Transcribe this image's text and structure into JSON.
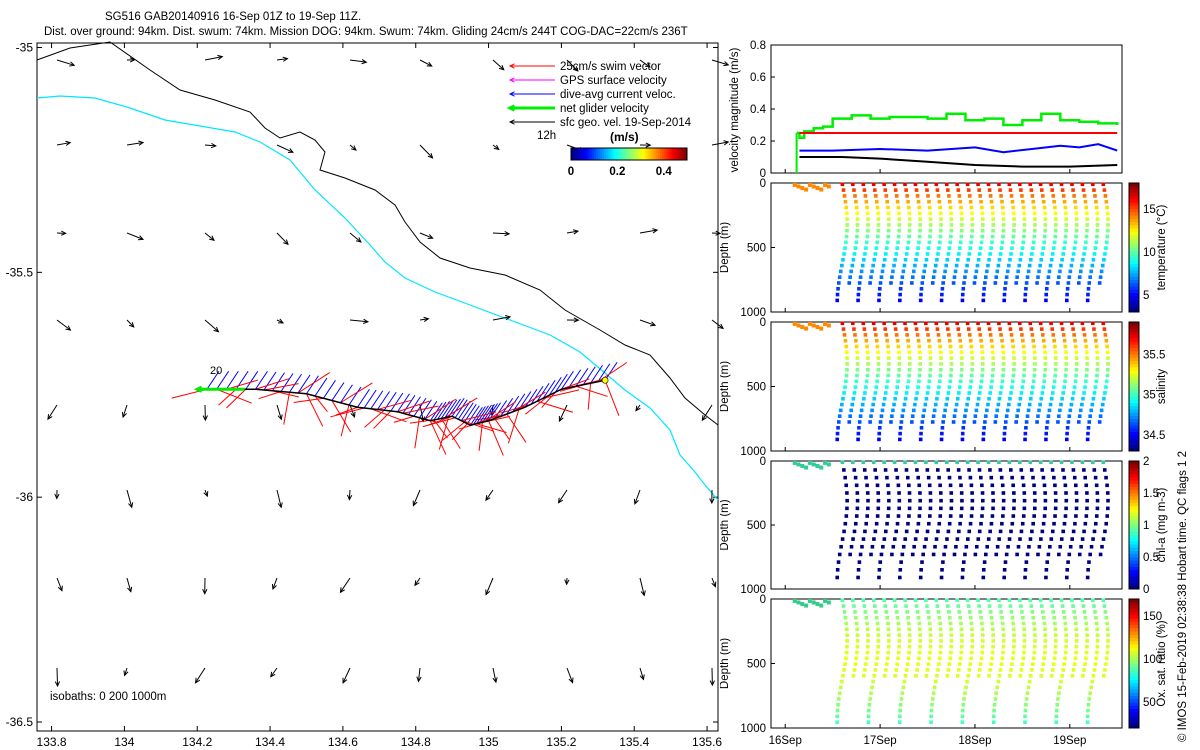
{
  "title_line1": "SG516 GAB20140916 16-Sep 01Z to 19-Sep 11Z.",
  "title_line2": "Dist. over ground: 94km. Dist. swum: 74km. Mission DOG: 94km. Swum: 74km. Gliding 24cm/s 244T COG-DAC=22cm/s 236T",
  "credit": "© IMOS 15-Feb-2019 02:38:38 Hobart time. QC flags 1  2",
  "colors": {
    "swim": "#ff0000",
    "gps": "#ff00ff",
    "dac": "#0000ff",
    "net": "#00ee00",
    "geo": "#000000",
    "isobath200": "#000000",
    "isobath1000": "#00e5ff"
  },
  "chart_data": [
    {
      "type": "map",
      "xlim": [
        133.76,
        135.63
      ],
      "ylim": [
        -36.52,
        -34.99
      ],
      "xticks": [
        "133.8",
        "134",
        "134.2",
        "134.4",
        "134.6",
        "134.8",
        "135",
        "135.2",
        "135.4",
        "135.6"
      ],
      "yticks": [
        "-35",
        "-35.5",
        "-36",
        "-36.5"
      ],
      "isobath_label": "isobaths: 0   200  1000m",
      "time_label": "12h",
      "day_label": "20",
      "legend": [
        "25cm/s swim vector",
        "GPS surface velocity",
        "dive-avg current veloc.",
        "net glider velocity",
        "sfc geo. vel. 19-Sep-2014"
      ],
      "colorbar": {
        "label": "(m/s)",
        "ticks": [
          "0",
          "0.2",
          "0.4"
        ],
        "range": [
          0,
          0.5
        ]
      },
      "track": [
        [
          135.32,
          -35.74
        ],
        [
          135.2,
          -35.76
        ],
        [
          135.1,
          -35.8
        ],
        [
          135.0,
          -35.83
        ],
        [
          134.95,
          -35.84
        ],
        [
          134.9,
          -35.82
        ],
        [
          134.84,
          -35.83
        ],
        [
          134.75,
          -35.81
        ],
        [
          134.64,
          -35.8
        ],
        [
          134.5,
          -35.77
        ],
        [
          134.36,
          -35.76
        ],
        [
          134.2,
          -35.76
        ]
      ]
    },
    {
      "type": "line",
      "ylabel": "velocity magnitude (m/s)",
      "ylim": [
        0,
        0.8
      ],
      "yticks": [
        "0",
        "0.2",
        "0.4",
        "0.6",
        "0.8"
      ],
      "x_domain_days": [
        15.85,
        19.55
      ],
      "series": [
        {
          "color": "#00ee00",
          "x": [
            16.12,
            16.15,
            16.2,
            16.3,
            16.4,
            16.5,
            16.7,
            16.9,
            17.1,
            17.3,
            17.5,
            17.7,
            17.9,
            18.1,
            18.3,
            18.5,
            18.7,
            18.9,
            19.1,
            19.3,
            19.5
          ],
          "values": [
            0.25,
            0.22,
            0.26,
            0.28,
            0.29,
            0.34,
            0.36,
            0.34,
            0.35,
            0.35,
            0.34,
            0.37,
            0.33,
            0.34,
            0.3,
            0.33,
            0.37,
            0.33,
            0.32,
            0.31,
            0.3
          ]
        },
        {
          "color": "#ff0000",
          "x": [
            16.15,
            19.5
          ],
          "values": [
            0.25,
            0.25
          ]
        },
        {
          "color": "#0000ff",
          "x": [
            16.15,
            16.5,
            17.0,
            17.5,
            18.0,
            18.3,
            18.6,
            18.9,
            19.1,
            19.3,
            19.5
          ],
          "values": [
            0.14,
            0.14,
            0.15,
            0.14,
            0.16,
            0.13,
            0.15,
            0.17,
            0.16,
            0.18,
            0.14
          ]
        },
        {
          "color": "#000000",
          "x": [
            16.15,
            16.6,
            17.0,
            17.5,
            18.0,
            18.5,
            19.0,
            19.5
          ],
          "values": [
            0.1,
            0.1,
            0.09,
            0.07,
            0.05,
            0.04,
            0.04,
            0.05
          ]
        }
      ]
    },
    {
      "type": "scatter",
      "variable": "temperature",
      "ylabel": "Depth (m)",
      "clabel": "temperature (°C)",
      "cticks": [
        "5",
        "10",
        "15"
      ],
      "crange": [
        3,
        18
      ],
      "surface": 17,
      "bottom": 4,
      "yticks": [
        "0",
        "500",
        "1000"
      ]
    },
    {
      "type": "scatter",
      "variable": "salinity",
      "ylabel": "Depth (m)",
      "clabel": "salinity",
      "cticks": [
        "34.5",
        "35",
        "35.5"
      ],
      "crange": [
        34.3,
        35.9
      ],
      "surface": 35.8,
      "bottom": 34.4,
      "yticks": [
        "0",
        "500",
        "1000"
      ]
    },
    {
      "type": "scatter",
      "variable": "chl-a",
      "ylabel": "Depth (m)",
      "clabel": "chl-a (mg m-3)",
      "cticks": [
        "0",
        "0.5",
        "1",
        "1.5",
        "2"
      ],
      "crange": [
        0,
        2
      ],
      "yticks": [
        "0",
        "500",
        "1000"
      ]
    },
    {
      "type": "scatter",
      "variable": "Ox. sat. ratio",
      "ylabel": "Depth (m)",
      "clabel": "Ox. sat. ratio (%)",
      "cticks": [
        "50",
        "100",
        "150"
      ],
      "crange": [
        20,
        170
      ],
      "yticks": [
        "0",
        "500",
        "1000"
      ]
    }
  ],
  "time_axis": {
    "ticks": [
      "16Sep",
      "17Sep",
      "18Sep",
      "19Sep"
    ]
  }
}
